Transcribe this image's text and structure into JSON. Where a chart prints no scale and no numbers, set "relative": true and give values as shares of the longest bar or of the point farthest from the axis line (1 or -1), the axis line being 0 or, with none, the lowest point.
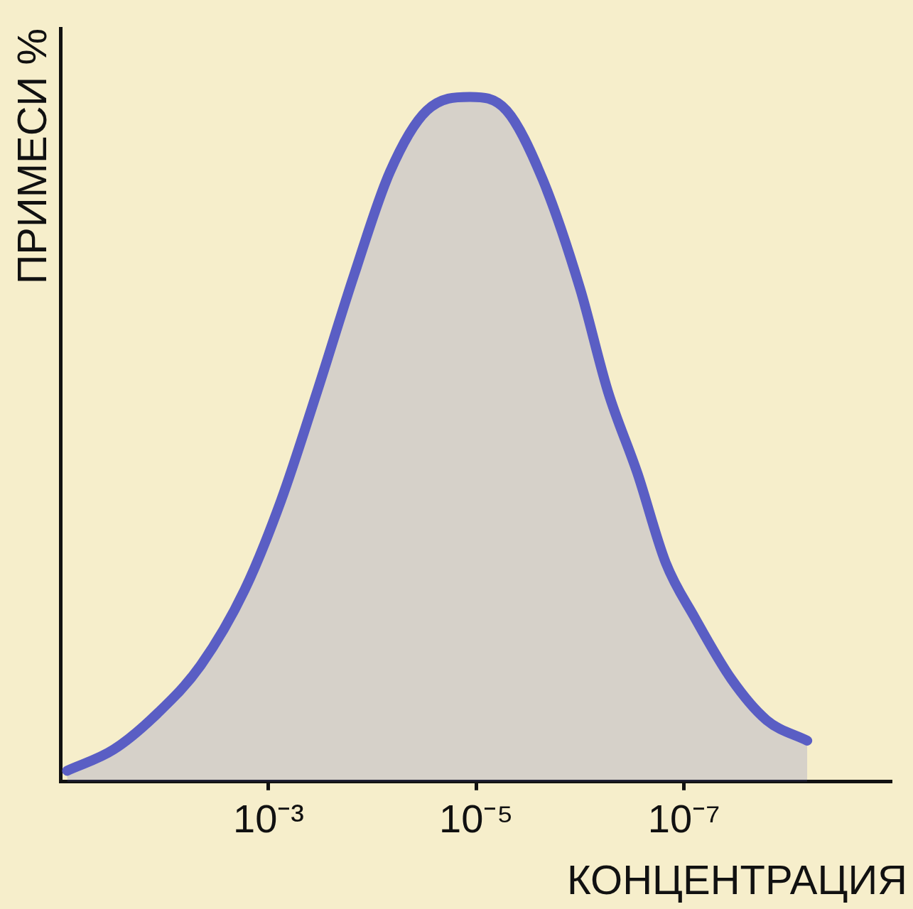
{
  "chart_data": {
    "type": "area",
    "xlabel": "КОНЦЕНТРАЦИЯ",
    "ylabel": "ПРИМЕСИ %",
    "relative": true,
    "log": "x",
    "marker": "none",
    "xlim": [
      0.1,
      1e-09
    ],
    "xticks": [
      {
        "value": 0.001,
        "label": "10⁻³"
      },
      {
        "value": 1e-05,
        "label": "10⁻⁵"
      },
      {
        "value": 1e-07,
        "label": "10⁻⁷"
      }
    ],
    "series": [
      {
        "color": "#5a5ec4",
        "x": [
          0.087,
          0.031,
          0.0117,
          0.0045,
          0.0017,
          0.00076,
          0.00034,
          0.00015,
          6.8e-05,
          3e-05,
          1.15e-05,
          5.1e-06,
          2.3e-06,
          1e-06,
          5.4e-07,
          2.8e-07,
          1.5e-07,
          7.9e-08,
          3.5e-08,
          1.6e-08,
          6.5e-09
        ],
        "values": [
          0.016,
          0.047,
          0.1,
          0.17,
          0.28,
          0.41,
          0.57,
          0.74,
          0.89,
          0.98,
          1.0,
          0.98,
          0.88,
          0.72,
          0.57,
          0.45,
          0.32,
          0.24,
          0.15,
          0.09,
          0.06
        ]
      }
    ]
  }
}
